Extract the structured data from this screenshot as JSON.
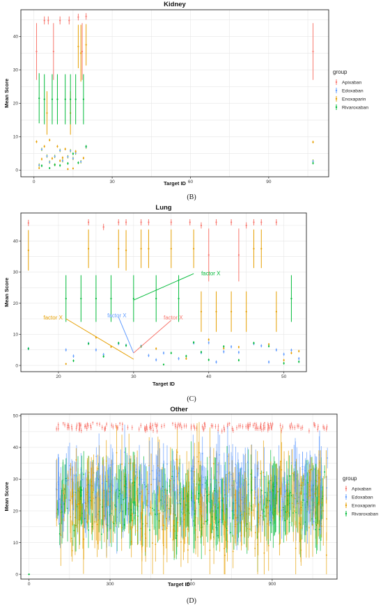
{
  "figure": {
    "panels": [
      "(B)",
      "(C)",
      "(D)"
    ]
  },
  "chart_data": [
    {
      "type": "scatter",
      "panel_label": "(B)",
      "title": "Kidney",
      "xlabel": "Target ID",
      "ylabel": "Mean Score",
      "xlim": [
        -5,
        113
      ],
      "ylim": [
        -2,
        48
      ],
      "xticks": [
        0,
        30,
        60,
        90
      ],
      "yticks": [
        0,
        10,
        20,
        30,
        40
      ],
      "grid": true,
      "legend": {
        "title": "group",
        "position": "right",
        "items": [
          "Apixaban",
          "Edoxaban",
          "Enoxaparin",
          "Rivaroxaban"
        ]
      },
      "series": [
        {
          "name": "Apixaban",
          "color": "#F8766D",
          "points": [
            [
              1,
              35.5,
              8.5
            ],
            [
              4,
              44.8,
              1.2
            ],
            [
              5.5,
              44.8,
              1.2
            ],
            [
              7.5,
              35.5,
              8.5
            ],
            [
              10,
              44.8,
              1.2
            ],
            [
              13.5,
              44.8,
              1.2
            ],
            [
              17,
              45.8,
              1
            ],
            [
              18.5,
              35.5,
              8.5
            ],
            [
              20,
              46,
              1
            ],
            [
              107,
              35.5,
              8.5
            ]
          ]
        },
        {
          "name": "Edoxaban",
          "color": "#7CAE00",
          "marker_color": "#619CFF",
          "points": [
            [
              2,
              1.5,
              0.5
            ],
            [
              3,
              6.2,
              0.5
            ],
            [
              5,
              4.2,
              0.5
            ],
            [
              6,
              2.4,
              0.5
            ],
            [
              8,
              4.1,
              0.5
            ],
            [
              10,
              5.9,
              0.5
            ],
            [
              11,
              2.8,
              0.5
            ],
            [
              13,
              4,
              0.5
            ],
            [
              14,
              5.8,
              0.5
            ],
            [
              15,
              3.5,
              0.5
            ],
            [
              16,
              5.1,
              0.5
            ],
            [
              18,
              2.5,
              0.5
            ],
            [
              20,
              6.9,
              0.5
            ],
            [
              107,
              2.7,
              0.5
            ]
          ]
        },
        {
          "name": "Enoxaparin",
          "color": "#E69F00",
          "points": [
            [
              1,
              8.5,
              0.4
            ],
            [
              2,
              0.6,
              0.3
            ],
            [
              3,
              3.3,
              0.4
            ],
            [
              4,
              7.1,
              0.4
            ],
            [
              5,
              17.1,
              6.5
            ],
            [
              6,
              9,
              0.4
            ],
            [
              7,
              3.5,
              0.4
            ],
            [
              8,
              1.6,
              0.4
            ],
            [
              9,
              7.1,
              0.4
            ],
            [
              10,
              2.8,
              0.4
            ],
            [
              11,
              3.7,
              0.4
            ],
            [
              12,
              6.3,
              0.4
            ],
            [
              13,
              0.3,
              0.3
            ],
            [
              14,
              17.1,
              6.5
            ],
            [
              15,
              0.5,
              0.3
            ],
            [
              16,
              5.6,
              0.4
            ],
            [
              17,
              37,
              6.5
            ],
            [
              18,
              35,
              8.5
            ],
            [
              19,
              3.6,
              0.4
            ],
            [
              20,
              37.5,
              6.2
            ],
            [
              107,
              8.4,
              0.4
            ]
          ]
        },
        {
          "name": "Rivaroxaban",
          "color": "#00BA38",
          "points": [
            [
              2,
              21.5,
              7.5
            ],
            [
              3,
              1.3,
              0.4
            ],
            [
              4,
              21.2,
              7.5
            ],
            [
              6,
              0.6,
              0.3
            ],
            [
              7,
              21.2,
              7.5
            ],
            [
              8,
              1.6,
              0.4
            ],
            [
              9,
              21.2,
              7.5
            ],
            [
              10,
              1.4,
              0.4
            ],
            [
              12,
              21.2,
              7.5
            ],
            [
              13,
              2,
              0.4
            ],
            [
              14,
              21.2,
              7.5
            ],
            [
              15,
              4.9,
              0.4
            ],
            [
              16,
              21.2,
              7.5
            ],
            [
              17,
              2.2,
              0.4
            ],
            [
              19,
              21.2,
              7.5
            ],
            [
              20,
              7.1,
              0.4
            ],
            [
              107,
              2.1,
              0.4
            ]
          ]
        }
      ]
    },
    {
      "type": "scatter",
      "panel_label": "(C)",
      "title": "Lung",
      "xlabel": "Target ID",
      "ylabel": "Mean Score",
      "xlim": [
        15,
        53
      ],
      "ylim": [
        -2,
        49
      ],
      "xticks": [
        20,
        30,
        40,
        50
      ],
      "yticks": [
        0,
        10,
        20,
        30,
        40
      ],
      "grid": true,
      "annotations": [
        {
          "text": "factor X",
          "color": "#00BA38",
          "text_at": [
            39,
            29
          ],
          "from": [
            38,
            29.5
          ],
          "to": [
            30,
            21
          ]
        },
        {
          "text": "factor X",
          "color": "#619CFF",
          "text_at": [
            26.5,
            15.5
          ],
          "from": [
            28,
            15.5
          ],
          "to": [
            30,
            4
          ]
        },
        {
          "text": "factor X",
          "color": "#E69F00",
          "text_at": [
            18,
            14.8
          ],
          "from": [
            21,
            15
          ],
          "to": [
            30,
            2
          ]
        },
        {
          "text": "factor X",
          "color": "#F8766D",
          "text_at": [
            34,
            14.8
          ],
          "from": [
            35,
            14.5
          ],
          "to": [
            30,
            4
          ]
        }
      ],
      "series": [
        {
          "name": "Apixaban",
          "color": "#F8766D",
          "points": [
            [
              16,
              45.8,
              1
            ],
            [
              24,
              46,
              1
            ],
            [
              26,
              44.5,
              1
            ],
            [
              28,
              46,
              1
            ],
            [
              29,
              46,
              1
            ],
            [
              31,
              46,
              1
            ],
            [
              32,
              46,
              1
            ],
            [
              35,
              46,
              1
            ],
            [
              37.5,
              46,
              1
            ],
            [
              39,
              45,
              1
            ],
            [
              40,
              35.5,
              8.5
            ],
            [
              41,
              46,
              1
            ],
            [
              43,
              46,
              1
            ],
            [
              44,
              35.5,
              8.5
            ],
            [
              45,
              45,
              1
            ],
            [
              46,
              46,
              1
            ],
            [
              47,
              46,
              1
            ],
            [
              49,
              46,
              1
            ]
          ]
        },
        {
          "name": "Edoxaban",
          "color": "#619CFF",
          "points": [
            [
              16,
              5.4,
              0.5
            ],
            [
              21,
              5,
              0.5
            ],
            [
              22,
              3,
              0.5
            ],
            [
              24,
              7.1,
              0.5
            ],
            [
              25,
              5,
              0.5
            ],
            [
              26,
              3.5,
              0.5
            ],
            [
              28,
              7,
              0.5
            ],
            [
              29,
              6.5,
              0.5
            ],
            [
              31,
              6.2,
              0.5
            ],
            [
              32,
              3.2,
              0.5
            ],
            [
              33,
              1.8,
              0.5
            ],
            [
              34,
              4,
              0.5
            ],
            [
              36,
              2.2,
              0.5
            ],
            [
              38,
              7.2,
              0.5
            ],
            [
              39,
              4.1,
              0.5
            ],
            [
              40,
              7.3,
              0.5
            ],
            [
              41,
              1.1,
              0.5
            ],
            [
              42,
              4.4,
              0.5
            ],
            [
              43,
              6,
              0.5
            ],
            [
              44,
              4.2,
              0.5
            ],
            [
              46,
              7,
              0.5
            ],
            [
              47,
              6.3,
              0.5
            ],
            [
              48,
              1.1,
              0.5
            ],
            [
              49,
              5,
              0.5
            ],
            [
              50,
              3.6,
              0.5
            ],
            [
              51,
              4.9,
              0.5
            ],
            [
              52,
              2.2,
              0.5
            ]
          ]
        },
        {
          "name": "Enoxaparin",
          "color": "#E69F00",
          "points": [
            [
              16,
              37,
              6.5
            ],
            [
              21,
              0.5,
              0.3
            ],
            [
              24,
              37.5,
              6.2
            ],
            [
              25,
              9,
              0.4
            ],
            [
              27,
              6,
              0.4
            ],
            [
              28,
              37.5,
              6.2
            ],
            [
              29,
              37,
              6.5
            ],
            [
              31,
              37.5,
              6.2
            ],
            [
              32,
              37.5,
              6.2
            ],
            [
              33,
              5.4,
              0.4
            ],
            [
              35,
              37.5,
              6.2
            ],
            [
              37,
              2.2,
              0.4
            ],
            [
              38,
              37.5,
              6.2
            ],
            [
              39,
              17.3,
              6.5
            ],
            [
              40,
              8.3,
              0.4
            ],
            [
              41,
              17.3,
              6.5
            ],
            [
              42,
              5.5,
              0.4
            ],
            [
              43,
              17.3,
              6.5
            ],
            [
              44,
              5.9,
              0.4
            ],
            [
              45,
              17.3,
              6.5
            ],
            [
              46,
              37.5,
              6.2
            ],
            [
              47,
              37.5,
              6.2
            ],
            [
              48,
              6.8,
              0.4
            ],
            [
              49,
              17.3,
              6.5
            ],
            [
              50,
              1.7,
              0.4
            ],
            [
              51,
              4,
              0.4
            ],
            [
              52,
              4.6,
              0.4
            ]
          ]
        },
        {
          "name": "Rivaroxaban",
          "color": "#00BA38",
          "points": [
            [
              16,
              5.4,
              0.4
            ],
            [
              21,
              21.5,
              7.5
            ],
            [
              22,
              1.5,
              0.4
            ],
            [
              23,
              21.5,
              7.5
            ],
            [
              24,
              7,
              0.4
            ],
            [
              25,
              21.5,
              7.5
            ],
            [
              26,
              2.9,
              0.4
            ],
            [
              27,
              21.5,
              7.5
            ],
            [
              28,
              7.2,
              0.4
            ],
            [
              29,
              6.4,
              0.4
            ],
            [
              30,
              21.5,
              7.5
            ],
            [
              31,
              6.1,
              0.4
            ],
            [
              33,
              21.5,
              7.5
            ],
            [
              34,
              0.3,
              0.3
            ],
            [
              35,
              4,
              0.4
            ],
            [
              36,
              21.5,
              7.5
            ],
            [
              37,
              3,
              0.4
            ],
            [
              38,
              7.4,
              0.4
            ],
            [
              39,
              4.3,
              0.4
            ],
            [
              40,
              1.8,
              0.4
            ],
            [
              42,
              6.1,
              0.4
            ],
            [
              44,
              1.7,
              0.4
            ],
            [
              46,
              7.2,
              0.4
            ],
            [
              48,
              6.2,
              0.4
            ],
            [
              50,
              0.7,
              0.4
            ],
            [
              51,
              21.5,
              7.5
            ],
            [
              52,
              1.2,
              0.4
            ]
          ]
        }
      ]
    },
    {
      "type": "scatter",
      "panel_label": "(D)",
      "title": "Other",
      "xlabel": "Target ID",
      "ylabel": "Mean Score",
      "xlim": [
        -30,
        1140
      ],
      "ylim": [
        -1.5,
        50.5
      ],
      "xticks": [
        0,
        300,
        600,
        900
      ],
      "yticks": [
        0,
        10,
        20,
        30,
        40,
        50
      ],
      "grid": true,
      "legend": {
        "title": "group",
        "position": "right",
        "items": [
          "Apixaban",
          "Edoxaban",
          "Enoxaparin",
          "Rivaroxaban"
        ]
      },
      "series_summary": [
        {
          "name": "Apixaban",
          "color": "#F8766D",
          "x_range": [
            100,
            1105
          ],
          "y_center": 46.5,
          "spread": 1.2
        },
        {
          "name": "Edoxaban",
          "color": "#619CFF",
          "x_range": [
            100,
            1105
          ],
          "y_center": 27,
          "spread": 10
        },
        {
          "name": "Enoxaparin",
          "color": "#E69F00",
          "x_range": [
            100,
            1105
          ],
          "y_center": 22,
          "spread": 14
        },
        {
          "name": "Rivaroxaban",
          "color": "#00BA38",
          "x_range": [
            100,
            1105
          ],
          "y_center": 22,
          "spread": 9
        }
      ],
      "isolated_points": [
        [
          0,
          0
        ]
      ]
    }
  ]
}
